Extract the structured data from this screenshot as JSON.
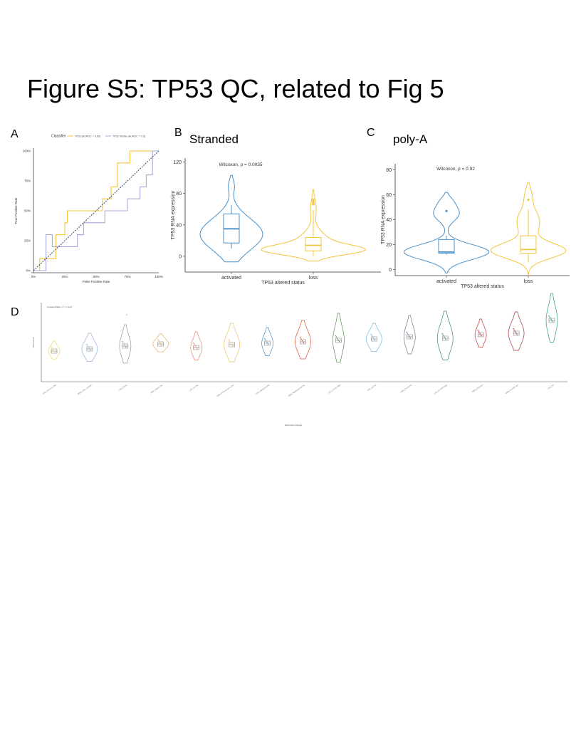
{
  "figure_title": "Figure S5: TP53 QC, related to Fig 5",
  "panels": {
    "A": {
      "label": "A"
    },
    "B": {
      "label": "B",
      "subtitle": "Stranded"
    },
    "C": {
      "label": "C",
      "subtitle": "poly-A"
    },
    "D": {
      "label": "D"
    }
  },
  "colors": {
    "blue": "#4a90c8",
    "gold": "#f2c53d",
    "lavender": "#a9a9d9"
  },
  "chart_data": [
    {
      "type": "line",
      "panel": "A",
      "xlabel": "False Positive Rate",
      "ylabel": "True Positive Rate",
      "xticks": [
        "0%",
        "25%",
        "50%",
        "75%",
        "100%"
      ],
      "yticks": [
        "0%",
        "25%",
        "50%",
        "75%",
        "100%"
      ],
      "legend_title": "Classifier",
      "legend_position": "top",
      "series": [
        {
          "name": "TP53 (AUROC = 0.65)",
          "color": "#f2c53d",
          "x": [
            0,
            0.05,
            0.05,
            0.18,
            0.18,
            0.25,
            0.25,
            0.27,
            0.27,
            0.55,
            0.55,
            0.62,
            0.62,
            0.67,
            0.67,
            0.77,
            0.77,
            0.85,
            0.85,
            1.0
          ],
          "y": [
            0,
            0,
            0.1,
            0.1,
            0.3,
            0.3,
            0.4,
            0.4,
            0.5,
            0.5,
            0.6,
            0.6,
            0.7,
            0.7,
            0.9,
            0.9,
            1.0,
            1.0,
            1.0,
            1.0
          ]
        },
        {
          "name": "TP53 Shuffle (AUROC = 0.5)",
          "color": "#a9a9d9",
          "x": [
            0,
            0.1,
            0.1,
            0.15,
            0.15,
            0.35,
            0.35,
            0.4,
            0.4,
            0.57,
            0.57,
            0.75,
            0.75,
            0.85,
            0.85,
            0.9,
            0.9,
            0.95,
            0.95,
            1.0
          ],
          "y": [
            0,
            0,
            0.3,
            0.3,
            0.2,
            0.2,
            0.3,
            0.3,
            0.4,
            0.4,
            0.5,
            0.5,
            0.6,
            0.6,
            0.7,
            0.7,
            0.8,
            0.8,
            1.0,
            1.0
          ]
        }
      ],
      "diagonal": true,
      "grid": false
    },
    {
      "type": "violin",
      "panel": "B",
      "annotation": "Wilcoxon, p = 0.0035",
      "xlabel": "TP53 altered status",
      "ylabel": "TP53 RNA expression",
      "categories": [
        "activated",
        "loss"
      ],
      "ylim": [
        -20,
        125
      ],
      "yticks": [
        0,
        40,
        80,
        120
      ],
      "boxes": [
        {
          "name": "activated",
          "min": 10,
          "q1": 17,
          "median": 35,
          "q3": 54,
          "max": 65,
          "outliers": [],
          "color": "#4a90c8"
        },
        {
          "name": "loss",
          "min": 0,
          "q1": 7,
          "median": 14,
          "q3": 24,
          "max": 59,
          "outliers": [
            66,
            68,
            70,
            72
          ],
          "color": "#f2c53d"
        }
      ]
    },
    {
      "type": "violin",
      "panel": "C",
      "annotation": "Wilcoxon, p = 0.92",
      "xlabel": "TP53 altered status",
      "ylabel": "TP53 RNA expression",
      "categories": [
        "activated",
        "loss"
      ],
      "ylim": [
        -5,
        85
      ],
      "yticks": [
        0,
        20,
        40,
        60,
        80
      ],
      "boxes": [
        {
          "name": "activated",
          "min": 12,
          "q1": 13,
          "median": 14,
          "q3": 24,
          "max": 27,
          "outliers": [
            47
          ],
          "color": "#4a90c8"
        },
        {
          "name": "loss",
          "min": 6,
          "q1": 13,
          "median": 16,
          "q3": 27,
          "max": 48,
          "outliers": [
            56
          ],
          "color": "#f2c53d"
        }
      ]
    },
    {
      "type": "violin",
      "panel": "D",
      "annotation": "Kruskal-Wallis, p = 7.4e-07",
      "xlabel": "Molecular subtype",
      "ylabel": "TP53 score",
      "categories": [
        "LGG_IDHmut-codel",
        "GBM_LGG_subtype",
        "LGG_IDHwt",
        "GBM_Classic-like",
        "LGG_PA-like",
        "GBM_IDHmut-non-codel",
        "LGG_Mesenchymal",
        "GBM_Mesenchymal-like",
        "LGG_LGm6-GBM",
        "LGG_Neural",
        "GBM_Proneural",
        "LGG_G-CIMP-high",
        "GBM_Classical",
        "GBM_G-CIMP-low",
        "LGG_PA"
      ],
      "medians": [
        0.35,
        0.38,
        0.42,
        0.45,
        0.4,
        0.44,
        0.46,
        0.48,
        0.5,
        0.52,
        0.55,
        0.53,
        0.58,
        0.6,
        0.78
      ],
      "colors": [
        "#f2d36b",
        "#8fb3e0",
        "#999999",
        "#e0b060",
        "#f08070",
        "#f0c060",
        "#4a90c8",
        "#e05030",
        "#5a9050",
        "#70b8e0",
        "#8a6a9a",
        "#3a8a5a",
        "#c83030",
        "#a83030",
        "#2a9a7a"
      ]
    }
  ]
}
